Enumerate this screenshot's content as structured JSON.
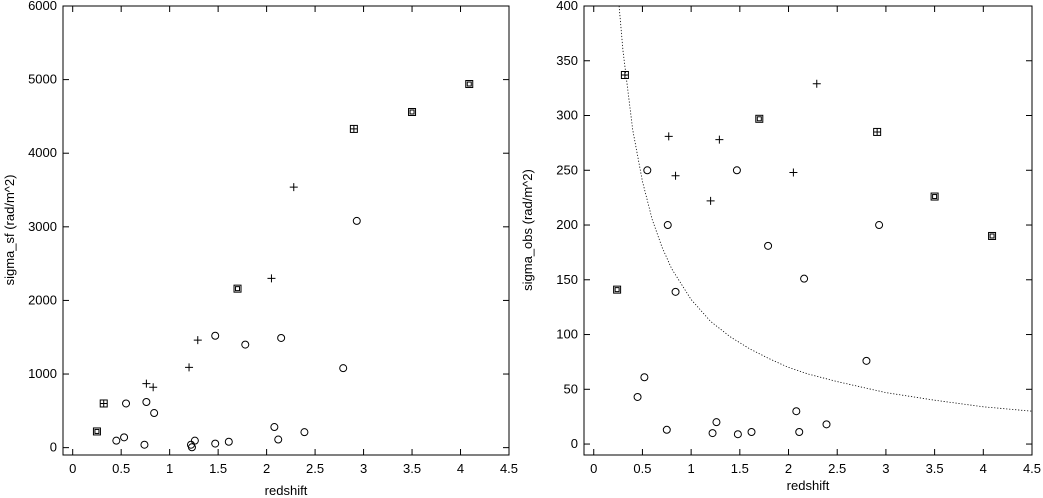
{
  "chart_data": [
    {
      "type": "scatter",
      "xlabel": "redshift",
      "ylabel": "sigma_sf (rad/m^2)",
      "xlim": [
        -0.1,
        4.5
      ],
      "ylim": [
        -100,
        6000
      ],
      "xticks": [
        "0",
        "0.5",
        "1",
        "1.5",
        "2",
        "2.5",
        "3",
        "3.5",
        "4",
        "4.5"
      ],
      "xtick_values": [
        0,
        0.5,
        1,
        1.5,
        2,
        2.5,
        3,
        3.5,
        4,
        4.5
      ],
      "yticks": [
        "0",
        "1000",
        "2000",
        "3000",
        "4000",
        "5000",
        "6000"
      ],
      "ytick_values": [
        0,
        1000,
        2000,
        3000,
        4000,
        5000,
        6000
      ],
      "grid": false,
      "series": [
        {
          "marker": "circle",
          "points": [
            [
              0.45,
              95
            ],
            [
              0.53,
              140
            ],
            [
              0.55,
              600
            ],
            [
              0.74,
              40
            ],
            [
              0.76,
              620
            ],
            [
              0.84,
              470
            ],
            [
              1.22,
              40
            ],
            [
              1.23,
              5
            ],
            [
              1.26,
              95
            ],
            [
              1.47,
              55
            ],
            [
              1.47,
              1520
            ],
            [
              1.61,
              80
            ],
            [
              1.78,
              1400
            ],
            [
              2.08,
              280
            ],
            [
              2.12,
              110
            ],
            [
              2.15,
              1490
            ],
            [
              2.39,
              210
            ],
            [
              2.79,
              1080
            ],
            [
              2.93,
              3080
            ]
          ]
        },
        {
          "marker": "plus",
          "points": [
            [
              0.76,
              870
            ],
            [
              0.83,
              820
            ],
            [
              1.2,
              1090
            ],
            [
              1.29,
              1460
            ],
            [
              2.05,
              2300
            ],
            [
              2.28,
              3540
            ]
          ]
        },
        {
          "marker": "box",
          "points": [
            [
              0.25,
              220
            ],
            [
              1.7,
              2160
            ],
            [
              3.5,
              4560
            ],
            [
              4.09,
              4940
            ]
          ]
        },
        {
          "marker": "boxplus",
          "points": [
            [
              0.32,
              600
            ],
            [
              2.9,
              4330
            ]
          ]
        }
      ]
    },
    {
      "type": "scatter",
      "xlabel": "redshift",
      "ylabel": "sigma_obs (rad/m^2)",
      "xlim": [
        -0.1,
        4.5
      ],
      "ylim": [
        -10,
        400
      ],
      "xticks": [
        "0",
        "0.5",
        "1",
        "1.5",
        "2",
        "2.5",
        "3",
        "3.5",
        "4",
        "4.5"
      ],
      "xtick_values": [
        0,
        0.5,
        1,
        1.5,
        2,
        2.5,
        3,
        3.5,
        4,
        4.5
      ],
      "yticks": [
        "0",
        "50",
        "100",
        "150",
        "200",
        "250",
        "300",
        "350",
        "400"
      ],
      "ytick_values": [
        0,
        50,
        100,
        150,
        200,
        250,
        300,
        350,
        400
      ],
      "grid": false,
      "curve": {
        "style": "dotted",
        "points": [
          [
            0.25,
            800
          ],
          [
            0.26,
            400
          ],
          [
            0.3,
            359
          ],
          [
            0.4,
            287
          ],
          [
            0.5,
            240
          ],
          [
            0.6,
            205
          ],
          [
            0.7,
            180
          ],
          [
            0.8,
            160
          ],
          [
            1.0,
            132
          ],
          [
            1.2,
            112
          ],
          [
            1.4,
            98
          ],
          [
            1.6,
            87
          ],
          [
            1.8,
            78
          ],
          [
            2.0,
            70
          ],
          [
            2.2,
            64
          ],
          [
            2.5,
            57
          ],
          [
            2.8,
            51
          ],
          [
            3.0,
            47
          ],
          [
            3.5,
            40
          ],
          [
            4.0,
            34
          ],
          [
            4.5,
            30
          ]
        ]
      },
      "series": [
        {
          "marker": "circle",
          "points": [
            [
              0.45,
              43
            ],
            [
              0.52,
              61
            ],
            [
              0.55,
              250
            ],
            [
              0.75,
              13
            ],
            [
              0.76,
              200
            ],
            [
              0.84,
              139
            ],
            [
              1.22,
              10
            ],
            [
              1.26,
              20
            ],
            [
              1.47,
              250
            ],
            [
              1.48,
              9
            ],
            [
              1.62,
              11
            ],
            [
              1.79,
              181
            ],
            [
              2.08,
              30
            ],
            [
              2.11,
              11
            ],
            [
              2.16,
              151
            ],
            [
              2.39,
              18
            ],
            [
              2.8,
              76
            ],
            [
              2.93,
              200
            ]
          ]
        },
        {
          "marker": "plus",
          "points": [
            [
              0.77,
              281
            ],
            [
              0.84,
              245
            ],
            [
              1.2,
              222
            ],
            [
              1.29,
              278
            ],
            [
              2.05,
              248
            ],
            [
              2.29,
              329
            ]
          ]
        },
        {
          "marker": "box",
          "points": [
            [
              0.24,
              141
            ],
            [
              1.7,
              297
            ],
            [
              3.5,
              226
            ],
            [
              4.09,
              190
            ]
          ]
        },
        {
          "marker": "boxplus",
          "points": [
            [
              0.32,
              337
            ],
            [
              2.91,
              285
            ]
          ]
        }
      ]
    }
  ]
}
